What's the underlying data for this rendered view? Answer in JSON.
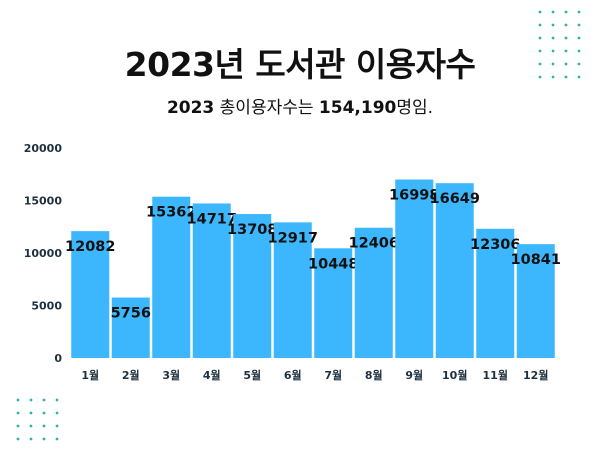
{
  "title": "2023년 도서관 이용자수",
  "subtitle": {
    "year": "2023",
    "text": " 총이용자수는 ",
    "total": "154,190",
    "suffix": "명임."
  },
  "colors": {
    "bar": "#3CB6FD",
    "text": "#111111",
    "axis": "#1f3140",
    "dots": "#2bb5a8"
  },
  "chart_data": {
    "type": "bar",
    "categories": [
      "1월",
      "2월",
      "3월",
      "4월",
      "5월",
      "6월",
      "7월",
      "8월",
      "9월",
      "10월",
      "11월",
      "12월"
    ],
    "values": [
      12082,
      5756,
      15362,
      14717,
      13708,
      12917,
      10448,
      12406,
      16998,
      16649,
      12306,
      10841
    ],
    "ylim": [
      0,
      20000
    ],
    "yticks": [
      0,
      5000,
      10000,
      15000,
      20000
    ],
    "grid": false,
    "data_labels": true
  }
}
